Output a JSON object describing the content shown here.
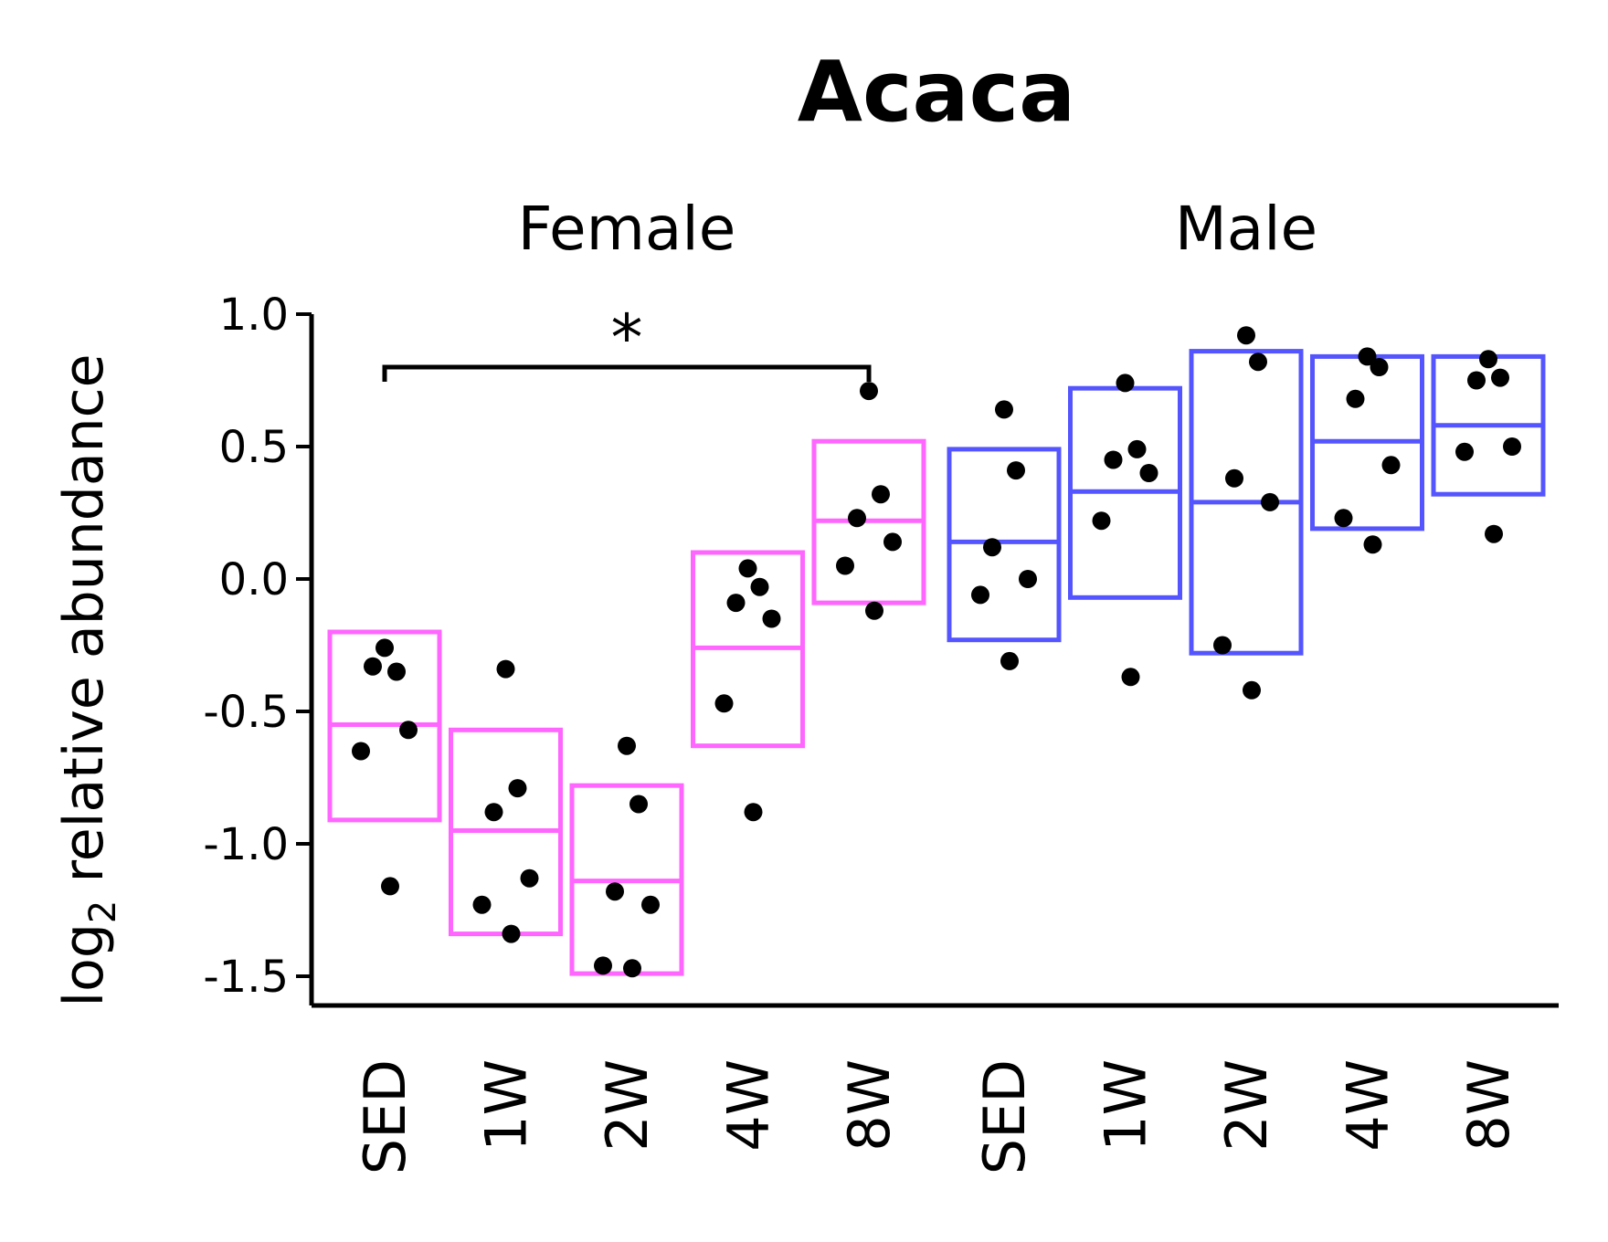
{
  "chart_data": {
    "type": "box-dot",
    "title": "Acaca",
    "ylabel_main": "log",
    "ylabel_sub": "2",
    "ylabel_rest": " relative abundance",
    "ylim": [
      -1.6,
      1.0
    ],
    "yticks": [
      {
        "value": 1.0,
        "label": "1.0"
      },
      {
        "value": 0.5,
        "label": "0.5"
      },
      {
        "value": 0.0,
        "label": "0.0"
      },
      {
        "value": -0.5,
        "label": "-0.5"
      },
      {
        "value": -1.0,
        "label": "-1.0"
      },
      {
        "value": -1.5,
        "label": "-1.5"
      }
    ],
    "significance": {
      "label": "*",
      "facet": 0,
      "from": 0,
      "to": 4,
      "y": 0.8
    },
    "facets": [
      {
        "name": "Female",
        "color": "#ff66ff",
        "groups": [
          {
            "label": "SED",
            "q1": -0.91,
            "median": -0.55,
            "q3": -0.2,
            "points": [
              -0.26,
              -0.35,
              -0.33,
              -0.57,
              -0.65,
              -1.16
            ]
          },
          {
            "label": "1W",
            "q1": -1.34,
            "median": -0.95,
            "q3": -0.57,
            "points": [
              -0.34,
              -0.79,
              -0.88,
              -1.13,
              -1.23,
              -1.34
            ]
          },
          {
            "label": "2W",
            "q1": -1.49,
            "median": -1.14,
            "q3": -0.78,
            "points": [
              -0.63,
              -0.85,
              -1.18,
              -1.23,
              -1.46,
              -1.47
            ]
          },
          {
            "label": "4W",
            "q1": -0.63,
            "median": -0.26,
            "q3": 0.1,
            "points": [
              0.04,
              -0.03,
              -0.09,
              -0.15,
              -0.47,
              -0.88
            ]
          },
          {
            "label": "8W",
            "q1": -0.09,
            "median": 0.22,
            "q3": 0.52,
            "points": [
              0.71,
              0.32,
              0.23,
              0.14,
              0.05,
              -0.12
            ]
          }
        ]
      },
      {
        "name": "Male",
        "color": "#5555ff",
        "groups": [
          {
            "label": "SED",
            "q1": -0.23,
            "median": 0.14,
            "q3": 0.49,
            "points": [
              0.64,
              0.41,
              0.12,
              0.0,
              -0.06,
              -0.31
            ]
          },
          {
            "label": "1W",
            "q1": -0.07,
            "median": 0.33,
            "q3": 0.72,
            "points": [
              0.74,
              0.49,
              0.45,
              0.4,
              0.22,
              -0.37
            ]
          },
          {
            "label": "2W",
            "q1": -0.28,
            "median": 0.29,
            "q3": 0.86,
            "points": [
              0.92,
              0.82,
              0.38,
              0.29,
              -0.25,
              -0.42
            ]
          },
          {
            "label": "4W",
            "q1": 0.19,
            "median": 0.52,
            "q3": 0.84,
            "points": [
              0.84,
              0.8,
              0.68,
              0.43,
              0.23,
              0.13
            ]
          },
          {
            "label": "8W",
            "q1": 0.32,
            "median": 0.58,
            "q3": 0.84,
            "points": [
              0.83,
              0.76,
              0.75,
              0.5,
              0.48,
              0.17
            ]
          }
        ]
      }
    ]
  }
}
